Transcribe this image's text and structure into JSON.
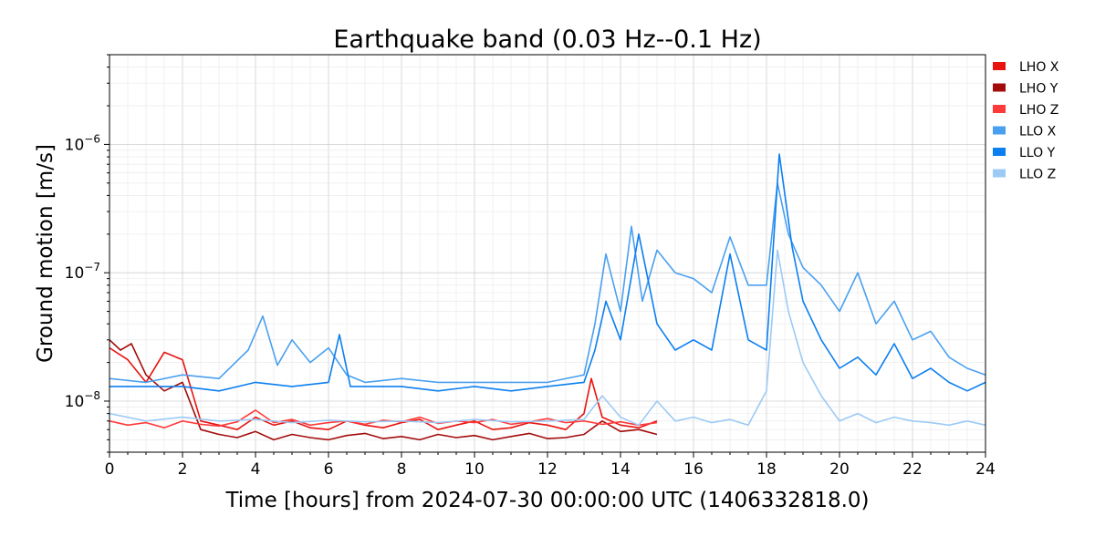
{
  "chart_data": {
    "type": "line",
    "title": "Earthquake band (0.03 Hz--0.1 Hz)",
    "xlabel": "Time [hours] from 2024-07-30 00:00:00 UTC (1406332818.0)",
    "ylabel": "Ground motion [m/s]",
    "xlim": [
      0,
      24
    ],
    "ylim": [
      4e-09,
      5e-06
    ],
    "yscale": "log",
    "grid": true,
    "legend_position": "outside-right",
    "x_ticks": [
      0,
      2,
      4,
      6,
      8,
      10,
      12,
      14,
      16,
      18,
      20,
      22,
      24
    ],
    "x_tick_labels": [
      "0",
      "2",
      "4",
      "6",
      "8",
      "10",
      "12",
      "14",
      "16",
      "18",
      "20",
      "22",
      "24"
    ],
    "y_ticks": [
      1e-08,
      1e-07,
      1e-06
    ],
    "y_tick_labels": [
      "10^-8",
      "10^-7",
      "10^-6"
    ],
    "series": [
      {
        "name": "LHO X",
        "color": "#e8130f",
        "x": [
          0,
          0.5,
          1,
          1.5,
          2,
          2.5,
          3,
          3.5,
          4,
          4.5,
          5,
          5.5,
          6,
          6.5,
          7,
          7.5,
          8,
          8.5,
          9,
          9.5,
          10,
          10.5,
          11,
          11.5,
          12,
          12.5,
          13,
          13.2,
          13.5,
          14,
          14.5,
          15
        ],
        "values": [
          2.6e-08,
          2.1e-08,
          1.4e-08,
          2.4e-08,
          2.1e-08,
          7e-09,
          6.5e-09,
          6e-09,
          7.5e-09,
          6.5e-09,
          7e-09,
          6.2e-09,
          6e-09,
          7e-09,
          6.5e-09,
          6.2e-09,
          6.8e-09,
          7.2e-09,
          6e-09,
          6.5e-09,
          7e-09,
          6e-09,
          6.2e-09,
          6.8e-09,
          6.5e-09,
          6e-09,
          8e-09,
          1.5e-08,
          7.5e-09,
          6.5e-09,
          6.2e-09,
          7e-09
        ]
      },
      {
        "name": "LHO Y",
        "color": "#a40b0b",
        "x": [
          0,
          0.3,
          0.6,
          1,
          1.5,
          2,
          2.5,
          3,
          3.5,
          4,
          4.5,
          5,
          5.5,
          6,
          6.5,
          7,
          7.5,
          8,
          8.5,
          9,
          9.5,
          10,
          10.5,
          11,
          11.5,
          12,
          12.5,
          13,
          13.5,
          14,
          14.5,
          15
        ],
        "values": [
          3e-08,
          2.5e-08,
          2.8e-08,
          1.6e-08,
          1.2e-08,
          1.4e-08,
          6e-09,
          5.5e-09,
          5.2e-09,
          5.8e-09,
          5e-09,
          5.5e-09,
          5.2e-09,
          5e-09,
          5.4e-09,
          5.6e-09,
          5.1e-09,
          5.3e-09,
          5e-09,
          5.5e-09,
          5.2e-09,
          5.4e-09,
          5e-09,
          5.3e-09,
          5.6e-09,
          5.1e-09,
          5.2e-09,
          5.5e-09,
          7e-09,
          5.8e-09,
          6e-09,
          5.5e-09
        ]
      },
      {
        "name": "LHO Z",
        "color": "#ff3a3a",
        "x": [
          0,
          0.5,
          1,
          1.5,
          2,
          2.5,
          3,
          3.5,
          4,
          4.5,
          5,
          5.5,
          6,
          6.5,
          7,
          7.5,
          8,
          8.5,
          9,
          9.5,
          10,
          10.5,
          11,
          11.5,
          12,
          12.5,
          13,
          13.5,
          14,
          14.5,
          15
        ],
        "values": [
          7e-09,
          6.5e-09,
          6.8e-09,
          6.2e-09,
          7e-09,
          6.6e-09,
          6.4e-09,
          6.9e-09,
          8.5e-09,
          6.8e-09,
          7.2e-09,
          6.5e-09,
          6.8e-09,
          7e-09,
          6.6e-09,
          7.1e-09,
          6.9e-09,
          7.5e-09,
          6.7e-09,
          7e-09,
          6.8e-09,
          7.2e-09,
          6.6e-09,
          6.9e-09,
          7.3e-09,
          6.8e-09,
          7e-09,
          6.6e-09,
          6.9e-09,
          6.5e-09,
          6.8e-09
        ]
      },
      {
        "name": "LLO X",
        "color": "#4aa0f0",
        "x": [
          0,
          1,
          2,
          3,
          3.8,
          4.2,
          4.6,
          5,
          5.5,
          6,
          6.5,
          7,
          8,
          9,
          10,
          11,
          12,
          13,
          13.3,
          13.6,
          14,
          14.3,
          14.6,
          15,
          15.5,
          16,
          16.5,
          17,
          17.5,
          18,
          18.3,
          18.6,
          19,
          19.5,
          20,
          20.5,
          21,
          21.5,
          22,
          22.5,
          23,
          23.5,
          24
        ],
        "values": [
          1.5e-08,
          1.4e-08,
          1.6e-08,
          1.5e-08,
          2.5e-08,
          4.6e-08,
          1.9e-08,
          3e-08,
          2e-08,
          2.6e-08,
          1.6e-08,
          1.4e-08,
          1.5e-08,
          1.4e-08,
          1.4e-08,
          1.4e-08,
          1.4e-08,
          1.6e-08,
          4e-08,
          1.4e-07,
          5e-08,
          2.3e-07,
          6e-08,
          1.5e-07,
          1e-07,
          9e-08,
          7e-08,
          1.9e-07,
          8e-08,
          8e-08,
          5e-07,
          2e-07,
          1.1e-07,
          8e-08,
          5e-08,
          1e-07,
          4e-08,
          6e-08,
          3e-08,
          3.5e-08,
          2.2e-08,
          1.8e-08,
          1.6e-08
        ]
      },
      {
        "name": "LLO Y",
        "color": "#0b7ff0",
        "x": [
          0,
          1,
          2,
          3,
          4,
          5,
          6,
          6.3,
          6.6,
          7,
          8,
          9,
          10,
          11,
          12,
          13,
          13.3,
          13.6,
          14,
          14.5,
          15,
          15.5,
          16,
          16.5,
          17,
          17.5,
          18,
          18.35,
          18.7,
          19,
          19.5,
          20,
          20.5,
          21,
          21.5,
          22,
          22.5,
          23,
          23.5,
          24
        ],
        "values": [
          1.3e-08,
          1.3e-08,
          1.3e-08,
          1.2e-08,
          1.4e-08,
          1.3e-08,
          1.4e-08,
          3.3e-08,
          1.3e-08,
          1.3e-08,
          1.3e-08,
          1.2e-08,
          1.3e-08,
          1.2e-08,
          1.3e-08,
          1.4e-08,
          2.5e-08,
          6e-08,
          3e-08,
          2e-07,
          4e-08,
          2.5e-08,
          3e-08,
          2.5e-08,
          1.4e-07,
          3e-08,
          2.5e-08,
          8.4e-07,
          1.6e-07,
          6e-08,
          3e-08,
          1.8e-08,
          2.2e-08,
          1.6e-08,
          2.8e-08,
          1.5e-08,
          1.8e-08,
          1.4e-08,
          1.2e-08,
          1.4e-08
        ]
      },
      {
        "name": "LLO Z",
        "color": "#9ccaf5",
        "x": [
          0,
          1,
          2,
          3,
          4,
          5,
          6,
          7,
          8,
          9,
          10,
          11,
          12,
          13,
          13.5,
          14,
          14.5,
          15,
          15.5,
          16,
          16.5,
          17,
          17.5,
          18,
          18.3,
          18.6,
          19,
          19.5,
          20,
          20.5,
          21,
          21.5,
          22,
          22.5,
          23,
          23.5,
          24
        ],
        "values": [
          8e-09,
          7e-09,
          7.5e-09,
          7e-09,
          7.2e-09,
          6.8e-09,
          7.1e-09,
          6.9e-09,
          7e-09,
          6.8e-09,
          7.2e-09,
          6.9e-09,
          7e-09,
          7.2e-09,
          1.1e-08,
          7.5e-09,
          6.5e-09,
          1e-08,
          7e-09,
          7.5e-09,
          6.8e-09,
          7.2e-09,
          6.5e-09,
          1.2e-08,
          1.5e-07,
          5e-08,
          2e-08,
          1.1e-08,
          7e-09,
          8e-09,
          6.8e-09,
          7.5e-09,
          7e-09,
          6.8e-09,
          6.5e-09,
          7e-09,
          6.5e-09
        ]
      }
    ]
  }
}
